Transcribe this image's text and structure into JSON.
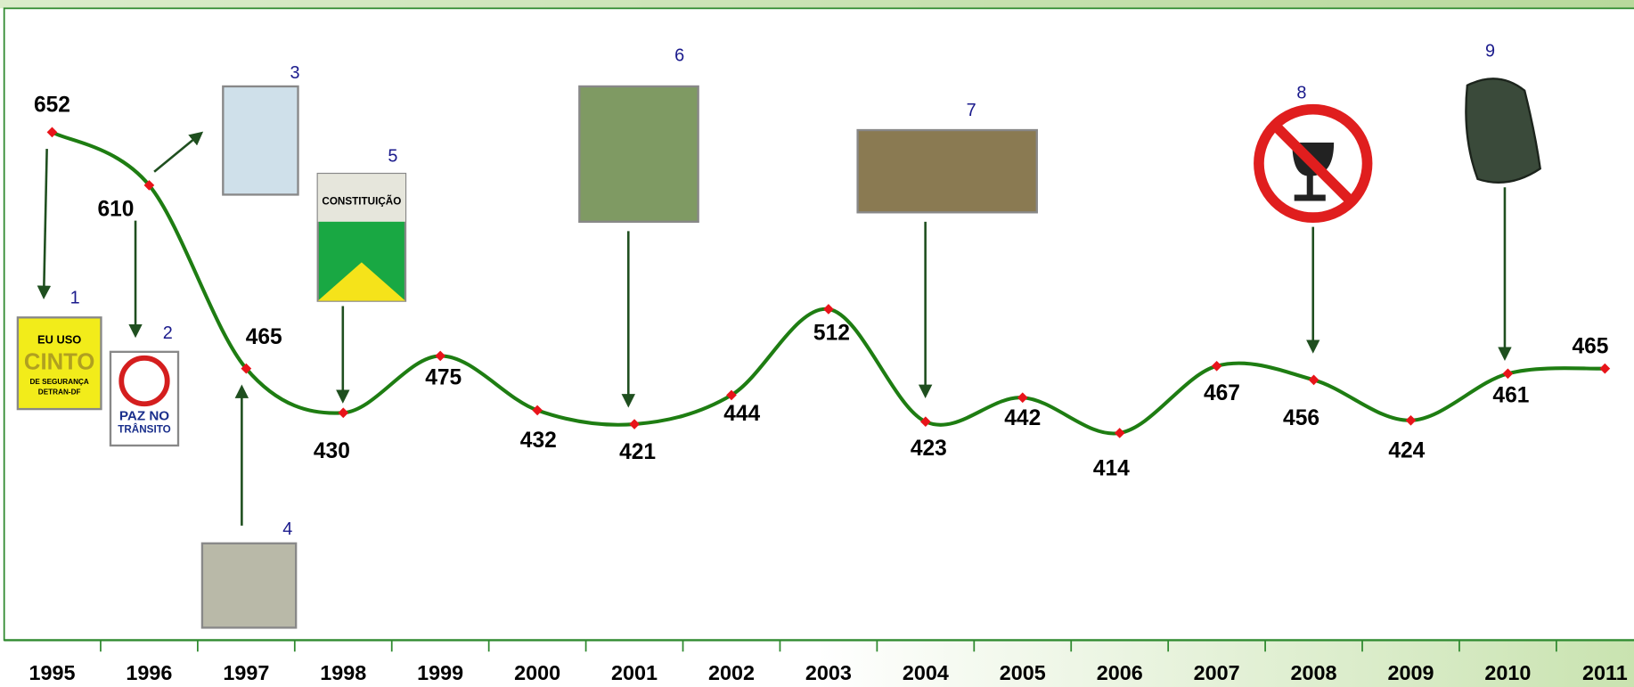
{
  "chart_data": {
    "type": "line",
    "categories": [
      "1995",
      "1996",
      "1997",
      "1998",
      "1999",
      "2000",
      "2001",
      "2002",
      "2003",
      "2004",
      "2005",
      "2006",
      "2007",
      "2008",
      "2009",
      "2010",
      "2011"
    ],
    "values": [
      652,
      610,
      465,
      430,
      475,
      432,
      421,
      444,
      512,
      423,
      442,
      414,
      467,
      456,
      424,
      461,
      465
    ],
    "color": "#1e7d12",
    "marker_color": "#e8141a",
    "annotations": [
      {
        "label": "1",
        "text": [
          "EU USO",
          "CINTO",
          "DE SEGURANÇA",
          "DETRAN-DF"
        ]
      },
      {
        "label": "2",
        "text": [
          "PAZ NO",
          "TRÂNSITO"
        ]
      },
      {
        "label": "3"
      },
      {
        "label": "4"
      },
      {
        "label": "5",
        "text": [
          "CONSTITUIÇÃO"
        ]
      },
      {
        "label": "6"
      },
      {
        "label": "7"
      },
      {
        "label": "8"
      },
      {
        "label": "9"
      }
    ]
  }
}
